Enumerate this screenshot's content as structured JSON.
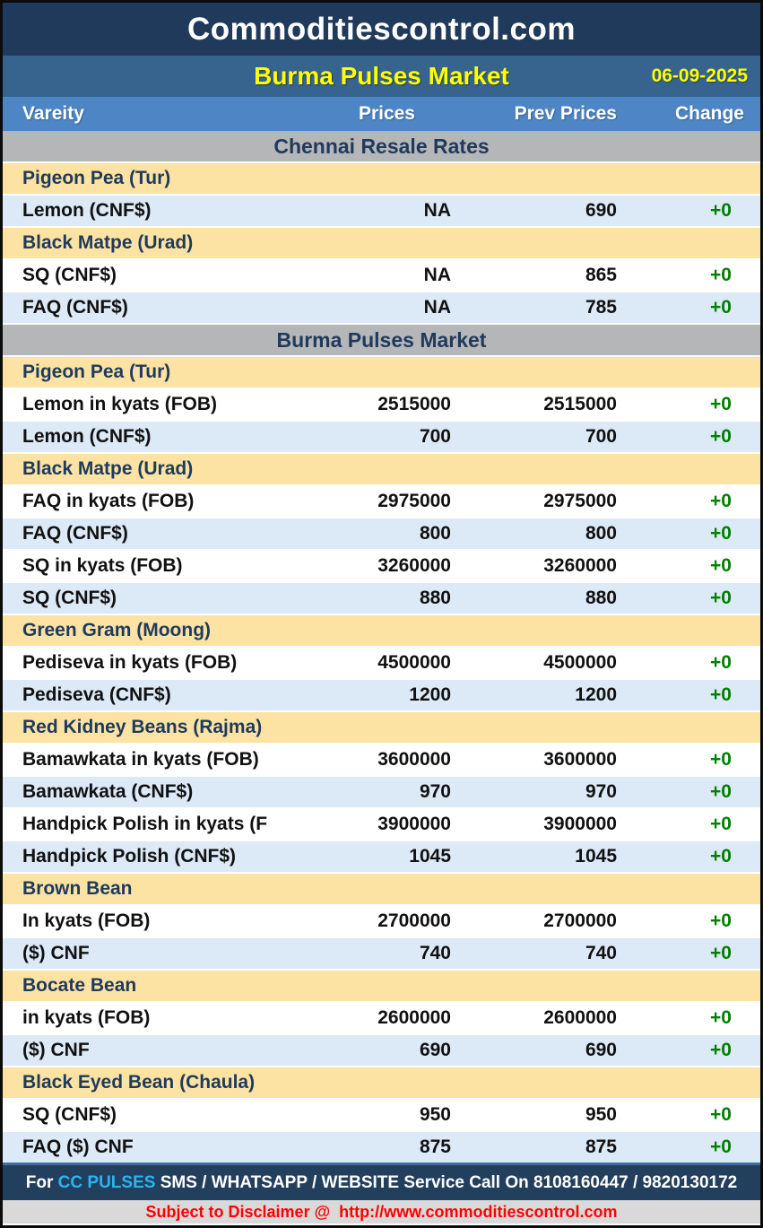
{
  "masthead": {
    "site_title": "Commoditiescontrol.com"
  },
  "title_bar": {
    "title": "Burma Pulses Market",
    "date": "06-09-2025"
  },
  "columns": [
    "Vareity",
    "Prices",
    "Prev Prices",
    "Change"
  ],
  "rows": [
    {
      "type": "section",
      "label": "Chennai Resale Rates"
    },
    {
      "type": "category",
      "label": "Pigeon Pea (Tur)"
    },
    {
      "type": "data",
      "shade": "blue",
      "label": "Lemon (CNF$)",
      "prices": "NA",
      "prev": "690",
      "change": "+0"
    },
    {
      "type": "category",
      "label": "Black Matpe (Urad)"
    },
    {
      "type": "data",
      "shade": "white",
      "label": "SQ (CNF$)",
      "prices": "NA",
      "prev": "865",
      "change": "+0"
    },
    {
      "type": "data",
      "shade": "blue",
      "label": "FAQ (CNF$)",
      "prices": "NA",
      "prev": "785",
      "change": "+0"
    },
    {
      "type": "section",
      "label": "Burma Pulses Market"
    },
    {
      "type": "category",
      "label": "Pigeon Pea (Tur)"
    },
    {
      "type": "data",
      "shade": "white",
      "label": "Lemon in kyats (FOB)",
      "prices": "2515000",
      "prev": "2515000",
      "change": "+0"
    },
    {
      "type": "data",
      "shade": "blue",
      "label": "Lemon (CNF$)",
      "prices": "700",
      "prev": "700",
      "change": "+0"
    },
    {
      "type": "category",
      "label": "Black Matpe (Urad)"
    },
    {
      "type": "data",
      "shade": "white",
      "label": "FAQ in kyats (FOB)",
      "prices": "2975000",
      "prev": "2975000",
      "change": "+0"
    },
    {
      "type": "data",
      "shade": "blue",
      "label": "FAQ (CNF$)",
      "prices": "800",
      "prev": "800",
      "change": "+0"
    },
    {
      "type": "data",
      "shade": "white",
      "label": "SQ in kyats (FOB)",
      "prices": "3260000",
      "prev": "3260000",
      "change": "+0"
    },
    {
      "type": "data",
      "shade": "blue",
      "label": "SQ (CNF$)",
      "prices": "880",
      "prev": "880",
      "change": "+0"
    },
    {
      "type": "category",
      "label": "Green Gram (Moong)"
    },
    {
      "type": "data",
      "shade": "white",
      "label": "Pediseva in kyats (FOB)",
      "prices": "4500000",
      "prev": "4500000",
      "change": "+0"
    },
    {
      "type": "data",
      "shade": "blue",
      "label": "Pediseva (CNF$)",
      "prices": "1200",
      "prev": "1200",
      "change": "+0"
    },
    {
      "type": "category",
      "label": "Red Kidney Beans (Rajma)"
    },
    {
      "type": "data",
      "shade": "white",
      "label": "Bamawkata in kyats (FOB)",
      "prices": "3600000",
      "prev": "3600000",
      "change": "+0"
    },
    {
      "type": "data",
      "shade": "blue",
      "label": "Bamawkata (CNF$)",
      "prices": "970",
      "prev": "970",
      "change": "+0"
    },
    {
      "type": "data",
      "shade": "white",
      "label": "Handpick Polish in kyats (F",
      "prices": "3900000",
      "prev": "3900000",
      "change": "+0"
    },
    {
      "type": "data",
      "shade": "blue",
      "label": "Handpick Polish (CNF$)",
      "prices": "1045",
      "prev": "1045",
      "change": "+0"
    },
    {
      "type": "category",
      "label": "Brown Bean"
    },
    {
      "type": "data",
      "shade": "white",
      "label": "In kyats (FOB)",
      "prices": "2700000",
      "prev": "2700000",
      "change": "+0"
    },
    {
      "type": "data",
      "shade": "blue",
      "label": "($) CNF",
      "prices": "740",
      "prev": "740",
      "change": "+0"
    },
    {
      "type": "category",
      "label": "Bocate Bean"
    },
    {
      "type": "data",
      "shade": "white",
      "label": "in kyats (FOB)",
      "prices": "2600000",
      "prev": "2600000",
      "change": "+0"
    },
    {
      "type": "data",
      "shade": "blue",
      "label": "($) CNF",
      "prices": "690",
      "prev": "690",
      "change": "+0"
    },
    {
      "type": "category",
      "label": "Black Eyed Bean (Chaula)"
    },
    {
      "type": "data",
      "shade": "white",
      "label": "SQ (CNF$)",
      "prices": "950",
      "prev": "950",
      "change": "+0"
    },
    {
      "type": "data",
      "shade": "blue",
      "label": "FAQ ($) CNF",
      "prices": "875",
      "prev": "875",
      "change": "+0"
    }
  ],
  "footer": {
    "prefix": "For ",
    "brand": "CC PULSES",
    "rest": " SMS / WHATSAPP / WEBSITE Service Call On 8108160447 / 9820130172"
  },
  "disclaimer": {
    "text": "Subject to Disclaimer @  ",
    "url": "http://www.commoditiescontrol.com"
  },
  "colors": {
    "masthead_bg": "#1f3a5a",
    "titlebar_bg": "#36648f",
    "column_header_bg": "#4d85c5",
    "section_bg": "#b5b6b8",
    "category_bg": "#fce3a3",
    "row_blue_bg": "#dce9f6",
    "row_white_bg": "#ffffff",
    "heading_navy": "#1e3a5c",
    "change_green": "#008000",
    "title_yellow": "#ffff00",
    "footer_bg": "#223f5e",
    "brand_cyan": "#29b6f0",
    "disclaimer_bg": "#d9d9d9",
    "disclaimer_red": "#ff0000"
  }
}
